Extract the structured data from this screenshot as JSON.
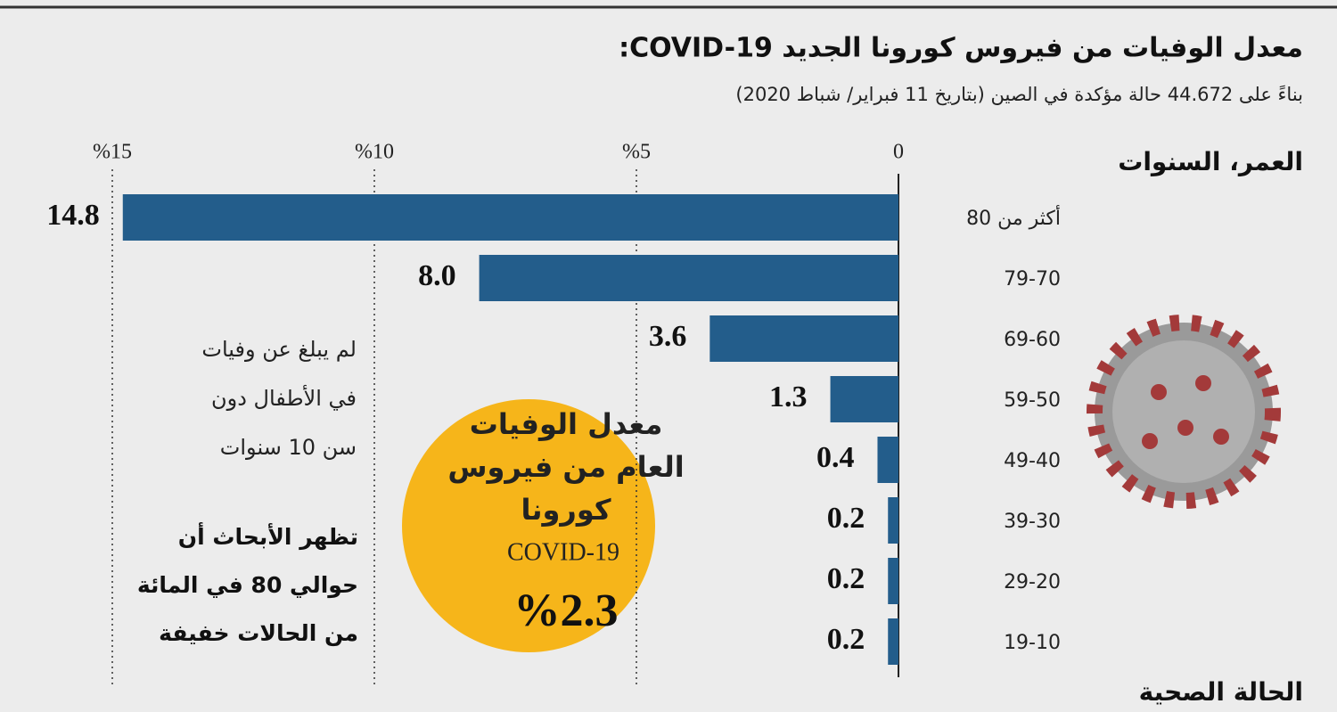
{
  "chart_data": {
    "type": "bar",
    "orientation": "horizontal-rtl",
    "title": "معدل الوفيات من فيروس كورونا الجديد COVID-19:",
    "subtitle": "بناءً على 44.672 حالة مؤكدة في الصين (بتاريخ 11 فبراير/ شباط 2020)",
    "y_label": "العمر، السنوات",
    "categories": [
      "أكثر من 80",
      "79-70",
      "69-60",
      "59-50",
      "49-40",
      "39-30",
      "29-20",
      "19-10"
    ],
    "values": [
      14.8,
      8.0,
      3.6,
      1.3,
      0.4,
      0.2,
      0.2,
      0.2
    ],
    "value_labels": [
      "14.8",
      "8.0",
      "3.6",
      "1.3",
      "0.4",
      "0.2",
      "0.2",
      "0.2"
    ],
    "color": "#235d8b",
    "xlim": [
      0,
      15
    ],
    "xticks": [
      0,
      {
        "value": 5,
        "label": "%5"
      },
      {
        "value": 10,
        "label": "%10"
      },
      {
        "value": 15,
        "label": "%15"
      }
    ],
    "grid": true,
    "annotations": {
      "children_note": [
        "لم يبلغ عن وفيات",
        "في الأطفال دون",
        "سن 10 سنوات"
      ],
      "mild_note": [
        "تظهر الأبحاث أن",
        "حوالي 80 في المائة",
        "من الحالات خفيفة"
      ],
      "overall": {
        "lines": [
          "معدل الوفيات",
          "العام من فيروس",
          "كورونا"
        ],
        "name": "COVID-19",
        "rate": "%2.3"
      }
    },
    "next_section": "الحالة الصحية"
  }
}
